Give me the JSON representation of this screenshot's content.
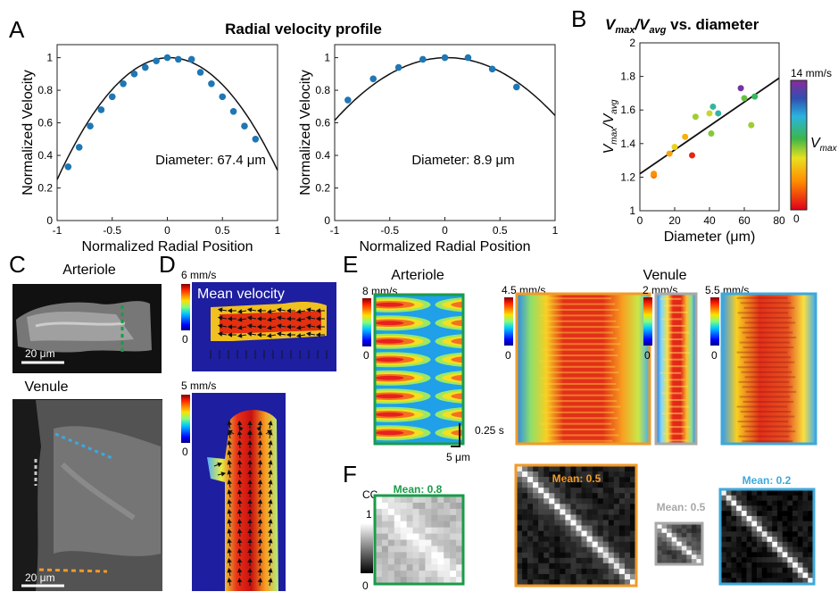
{
  "panels": {
    "A": {
      "label": "A",
      "title": "Radial velocity profile"
    },
    "B": {
      "label": "B",
      "title_main": "V",
      "title_sub1": "max",
      "title_slash": "/V",
      "title_sub2": "avg",
      "title_rest": " vs. diameter"
    },
    "C": {
      "label": "C",
      "arteriole": "Arteriole",
      "venule": "Venule",
      "scale_top": "20 μm",
      "scale_bottom": "20 μm"
    },
    "D": {
      "label": "D",
      "scale_top": "6 mm/s",
      "zero_top": "0",
      "mean_velocity": "Mean velocity",
      "scale_bottom": "5 mm/s",
      "zero_bottom": "0"
    },
    "E": {
      "label": "E",
      "arteriole": "Arteriole",
      "venule": "Venule",
      "scale1": "8 mm/s",
      "zero1": "0",
      "scale2": "4.5 mm/s",
      "zero2": "0",
      "scale3": "2 mm/s",
      "zero3": "0",
      "scale4": "5.5 mm/s",
      "zero4": "0",
      "time_bar": "0.25 s",
      "space_bar": "5 μm"
    },
    "F": {
      "label": "F",
      "cc": "CC",
      "cc_one": "1",
      "cc_zero": "0",
      "mean1": "Mean: 0.8",
      "mean2": "Mean: 0.5",
      "mean3": "Mean: 0.5",
      "mean4": "Mean: 0.2"
    }
  },
  "colors": {
    "green": "#1a9b49",
    "orange": "#f29a27",
    "gray": "#a8a8a8",
    "cyan": "#3ea8dc",
    "point": "#1f77b4"
  },
  "chart_data": [
    {
      "type": "scatter",
      "xlabel": "Normalized Radial Position",
      "ylabel": "Normalized Velocity",
      "xlim": [
        -1,
        1
      ],
      "ylim": [
        0,
        1.08
      ],
      "xticks": [
        "-1",
        "-0.5",
        "0",
        "0.5",
        "1"
      ],
      "yticks": [
        "0",
        "0.2",
        "0.4",
        "0.6",
        "0.8",
        "1"
      ],
      "annotation": "Diameter: 67.4 μm",
      "x": [
        -0.9,
        -0.8,
        -0.7,
        -0.6,
        -0.5,
        -0.4,
        -0.3,
        -0.2,
        -0.1,
        0.0,
        0.1,
        0.22,
        0.3,
        0.4,
        0.5,
        0.6,
        0.7,
        0.8
      ],
      "y": [
        0.33,
        0.45,
        0.58,
        0.68,
        0.76,
        0.84,
        0.9,
        0.94,
        0.98,
        1.0,
        0.99,
        0.99,
        0.91,
        0.84,
        0.76,
        0.67,
        0.58,
        0.5
      ],
      "fit": {
        "a": 0.72,
        "b": 0.02
      }
    },
    {
      "type": "scatter",
      "xlabel": "Normalized Radial Position",
      "ylabel": "Normalized Velocity",
      "xlim": [
        -1,
        1
      ],
      "ylim": [
        0,
        1.08
      ],
      "xticks": [
        "-1",
        "-0.5",
        "0",
        "0.5",
        "1"
      ],
      "yticks": [
        "0",
        "0.2",
        "0.4",
        "0.6",
        "0.8",
        "1"
      ],
      "annotation": "Diameter: 8.9 μm",
      "x": [
        -0.88,
        -0.65,
        -0.42,
        -0.2,
        0.0,
        0.21,
        0.43,
        0.65
      ],
      "y": [
        0.74,
        0.87,
        0.94,
        0.99,
        1.0,
        1.0,
        0.93,
        0.82
      ],
      "fit": {
        "a": 0.37,
        "b": 0.02
      }
    },
    {
      "type": "scatter",
      "xlabel": "Diameter (μm)",
      "ylabel_main": "V",
      "ylabel_sub1": "max",
      "ylabel_slash": "/V",
      "ylabel_sub2": "avg",
      "xlim": [
        0,
        80
      ],
      "ylim": [
        1,
        2
      ],
      "xticks": [
        "0",
        "20",
        "40",
        "60",
        "80"
      ],
      "yticks": [
        "1",
        "1.2",
        "1.4",
        "1.6",
        "1.8",
        "2"
      ],
      "colorbar": {
        "max_label": "14 mm/s",
        "min_label": "0",
        "name": "V",
        "name_sub": "max",
        "vmax": 14
      },
      "points": [
        {
          "x": 8,
          "y": 1.21,
          "v": 2.5
        },
        {
          "x": 8,
          "y": 1.22,
          "v": 3.2
        },
        {
          "x": 17,
          "y": 1.34,
          "v": 3.8
        },
        {
          "x": 20,
          "y": 1.38,
          "v": 5.2
        },
        {
          "x": 26,
          "y": 1.44,
          "v": 4.2
        },
        {
          "x": 30,
          "y": 1.33,
          "v": 0.8
        },
        {
          "x": 32,
          "y": 1.56,
          "v": 6.5
        },
        {
          "x": 40,
          "y": 1.58,
          "v": 6.0
        },
        {
          "x": 41,
          "y": 1.46,
          "v": 6.8
        },
        {
          "x": 42,
          "y": 1.62,
          "v": 9.0
        },
        {
          "x": 45,
          "y": 1.58,
          "v": 9.2
        },
        {
          "x": 58,
          "y": 1.73,
          "v": 13.5
        },
        {
          "x": 60,
          "y": 1.67,
          "v": 7.2
        },
        {
          "x": 64,
          "y": 1.51,
          "v": 6.5
        },
        {
          "x": 66,
          "y": 1.68,
          "v": 8.0
        }
      ],
      "fit": {
        "x": [
          0,
          80
        ],
        "y": [
          1.22,
          1.79
        ]
      }
    }
  ]
}
